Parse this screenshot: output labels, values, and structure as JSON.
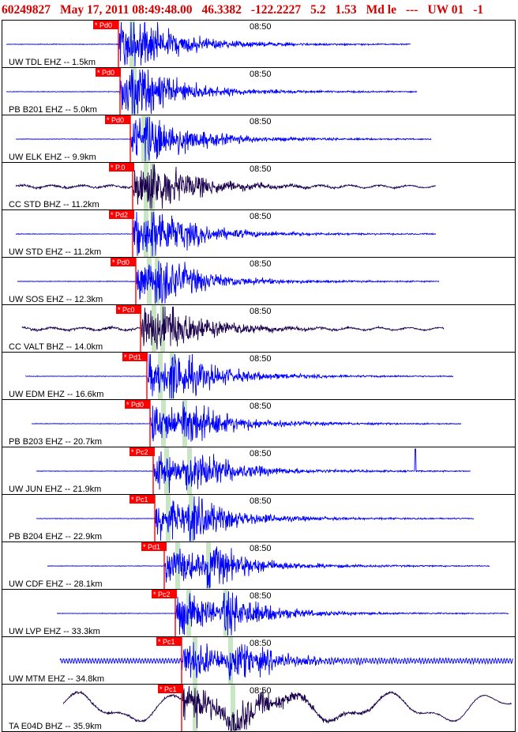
{
  "header": {
    "event_id": "60249827",
    "origin_time": "May 17, 2011 08:49:48.00",
    "latitude": "46.3382",
    "longitude": "-122.2227",
    "depth": "5.2",
    "magnitude": "1.53",
    "mag_type": "Md le",
    "flags": "---",
    "network": "UW 01",
    "version": "-1"
  },
  "time_label": "08:50",
  "colors": {
    "vertical_component": "#0000ff",
    "broadband": "#1a004d",
    "pick_label_bg": "#ff0000",
    "pick_label_text": "#ffffff",
    "s_window": "#c8e6c4",
    "header_text": "#d40000",
    "frame": "#000000"
  },
  "chart_data": {
    "type": "seismogram_record_section",
    "title": "60249827 May 17, 2011 08:49:48.00 46.3382 -122.2227 5.2 1.53 Md le --- UW 01 -1",
    "tick_label": "08:50",
    "traces": [
      {
        "label": "UW TDL EHZ -- 1.5km",
        "pick": "* Pd0",
        "dist_km": 1.5,
        "channel": "EHZ"
      },
      {
        "label": "PB B201 EHZ -- 5.0km",
        "pick": "* Pd0",
        "dist_km": 5.0,
        "channel": "EHZ"
      },
      {
        "label": "UW ELK EHZ -- 9.9km",
        "pick": "* Pd0",
        "dist_km": 9.9,
        "channel": "EHZ"
      },
      {
        "label": "CC STD BHZ -- 11.2km",
        "pick": "* P.0",
        "dist_km": 11.2,
        "channel": "BHZ"
      },
      {
        "label": "UW STD EHZ -- 11.2km",
        "pick": "* Pd2",
        "dist_km": 11.2,
        "channel": "EHZ"
      },
      {
        "label": "UW SOS EHZ -- 12.3km",
        "pick": "* Pd0",
        "dist_km": 12.3,
        "channel": "EHZ"
      },
      {
        "label": "CC VALT BHZ -- 14.0km",
        "pick": "* Pc0",
        "dist_km": 14.0,
        "channel": "BHZ"
      },
      {
        "label": "UW EDM EHZ -- 16.6km",
        "pick": "* Pd1",
        "dist_km": 16.6,
        "channel": "EHZ"
      },
      {
        "label": "PB B203 EHZ -- 20.7km",
        "pick": "* Pd0",
        "dist_km": 20.7,
        "channel": "EHZ"
      },
      {
        "label": "UW JUN EHZ -- 21.9km",
        "pick": "* Pc2",
        "dist_km": 21.9,
        "channel": "EHZ"
      },
      {
        "label": "PB B204 EHZ -- 22.9km",
        "pick": "* Pc1",
        "dist_km": 22.9,
        "channel": "EHZ"
      },
      {
        "label": "UW CDF EHZ -- 28.1km",
        "pick": "* Pd1",
        "dist_km": 28.1,
        "channel": "EHZ"
      },
      {
        "label": "UW LVP EHZ -- 33.3km",
        "pick": "* Pc2",
        "dist_km": 33.3,
        "channel": "EHZ"
      },
      {
        "label": "UW MTM EHZ -- 34.8km",
        "pick": "* Pc1",
        "dist_km": 34.8,
        "channel": "EHZ"
      },
      {
        "label": "TA E04D BHZ -- 35.9km",
        "pick": "* Pc1",
        "dist_km": 35.9,
        "channel": "BHZ"
      }
    ]
  }
}
